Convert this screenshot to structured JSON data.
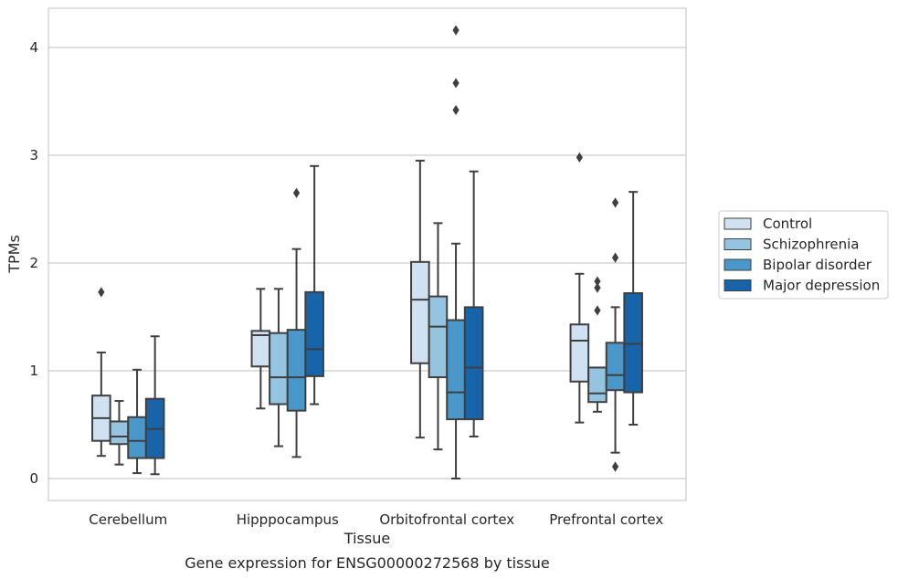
{
  "chart_data": {
    "type": "box",
    "title": "",
    "caption": "Gene expression for ENSG00000272568 by tissue",
    "xlabel": "Tissue",
    "ylabel": "TPMs",
    "ylim": [
      -0.2,
      4.37
    ],
    "yticks": [
      0,
      1,
      2,
      3,
      4
    ],
    "grid": "horizontal",
    "legend_position": "center-right",
    "categories": [
      "Cerebellum",
      "Hipppocampus",
      "Orbitofrontal cortex",
      "Prefrontal cortex"
    ],
    "series": [
      {
        "name": "Control",
        "color": "#d0e1f2",
        "boxes": [
          {
            "whisker_low": 0.21,
            "q1": 0.35,
            "median": 0.56,
            "q3": 0.77,
            "whisker_high": 1.17,
            "outliers": [
              1.73
            ]
          },
          {
            "whisker_low": 0.65,
            "q1": 1.04,
            "median": 1.33,
            "q3": 1.37,
            "whisker_high": 1.76,
            "outliers": []
          },
          {
            "whisker_low": 0.38,
            "q1": 1.07,
            "median": 1.66,
            "q3": 2.01,
            "whisker_high": 2.95,
            "outliers": []
          },
          {
            "whisker_low": 0.52,
            "q1": 0.9,
            "median": 1.28,
            "q3": 1.43,
            "whisker_high": 1.9,
            "outliers": [
              2.98
            ]
          }
        ]
      },
      {
        "name": "Schizophrenia",
        "color": "#94c4df",
        "boxes": [
          {
            "whisker_low": 0.13,
            "q1": 0.32,
            "median": 0.39,
            "q3": 0.53,
            "whisker_high": 0.72,
            "outliers": []
          },
          {
            "whisker_low": 0.3,
            "q1": 0.69,
            "median": 0.94,
            "q3": 1.35,
            "whisker_high": 1.76,
            "outliers": []
          },
          {
            "whisker_low": 0.27,
            "q1": 0.94,
            "median": 1.41,
            "q3": 1.69,
            "whisker_high": 2.37,
            "outliers": []
          },
          {
            "whisker_low": 0.62,
            "q1": 0.71,
            "median": 0.79,
            "q3": 1.03,
            "whisker_high": 1.03,
            "outliers": [
              1.56,
              1.77,
              1.83
            ]
          }
        ]
      },
      {
        "name": "Bipolar disorder",
        "color": "#4a98c9",
        "boxes": [
          {
            "whisker_low": 0.05,
            "q1": 0.19,
            "median": 0.35,
            "q3": 0.57,
            "whisker_high": 1.01,
            "outliers": []
          },
          {
            "whisker_low": 0.2,
            "q1": 0.63,
            "median": 0.94,
            "q3": 1.38,
            "whisker_high": 2.13,
            "outliers": [
              2.65
            ]
          },
          {
            "whisker_low": 0.0,
            "q1": 0.55,
            "median": 0.8,
            "q3": 1.47,
            "whisker_high": 2.18,
            "outliers": [
              3.42,
              3.67,
              4.16
            ]
          },
          {
            "whisker_low": 0.24,
            "q1": 0.82,
            "median": 0.96,
            "q3": 1.26,
            "whisker_high": 1.59,
            "outliers": [
              0.11,
              2.05,
              2.56
            ]
          }
        ]
      },
      {
        "name": "Major depression",
        "color": "#1764ab",
        "boxes": [
          {
            "whisker_low": 0.04,
            "q1": 0.19,
            "median": 0.46,
            "q3": 0.74,
            "whisker_high": 1.32,
            "outliers": []
          },
          {
            "whisker_low": 0.69,
            "q1": 0.95,
            "median": 1.2,
            "q3": 1.73,
            "whisker_high": 2.9,
            "outliers": []
          },
          {
            "whisker_low": 0.39,
            "q1": 0.55,
            "median": 1.03,
            "q3": 1.59,
            "whisker_high": 2.85,
            "outliers": []
          },
          {
            "whisker_low": 0.5,
            "q1": 0.8,
            "median": 1.25,
            "q3": 1.72,
            "whisker_high": 2.66,
            "outliers": []
          }
        ]
      }
    ]
  }
}
